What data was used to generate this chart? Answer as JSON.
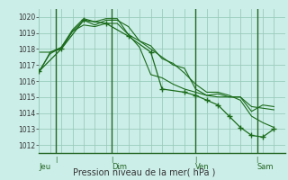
{
  "title": "Pression niveau de la mer( hPa )",
  "bg_color": "#cceee8",
  "grid_color": "#99ccbb",
  "line_color": "#1a6b1a",
  "marker_color": "#1a6b1a",
  "day_label_color": "#226622",
  "separator_color": "#226622",
  "ylim": [
    1011.5,
    1020.5
  ],
  "yticks": [
    1012,
    1013,
    1014,
    1015,
    1016,
    1017,
    1018,
    1019,
    1020
  ],
  "xlim": [
    0,
    22
  ],
  "day_positions": [
    1.5,
    6.5,
    14.0,
    19.5
  ],
  "day_labels": [
    "Jeu",
    "Dim",
    "Ven",
    "Sam"
  ],
  "series1": {
    "x": [
      0,
      1,
      2,
      3,
      4,
      5,
      6,
      7,
      8,
      9,
      10,
      11,
      12,
      13,
      14,
      15,
      16,
      17,
      18,
      19,
      20,
      21
    ],
    "y": [
      1016.6,
      1017.7,
      1018.1,
      1019.2,
      1019.9,
      1019.7,
      1019.9,
      1019.9,
      1018.9,
      1018.5,
      1018.2,
      1017.4,
      1017.1,
      1016.5,
      1015.8,
      1015.3,
      1015.3,
      1015.1,
      1014.8,
      1013.8,
      1013.4,
      1013.1
    ]
  },
  "series2": {
    "x": [
      0,
      1,
      2,
      3,
      4,
      5,
      6,
      7,
      8,
      9,
      10,
      11,
      12,
      13,
      14,
      15,
      16,
      17,
      18,
      19,
      20,
      21
    ],
    "y": [
      1017.8,
      1017.8,
      1018.1,
      1019.1,
      1019.5,
      1019.4,
      1019.6,
      1019.6,
      1018.9,
      1018.1,
      1016.4,
      1016.2,
      1015.8,
      1015.5,
      1015.3,
      1015.1,
      1015.0,
      1015.0,
      1015.0,
      1014.4,
      1014.3,
      1014.2
    ]
  },
  "series3": {
    "x": [
      0,
      1,
      2,
      3,
      4,
      5,
      6,
      7,
      8,
      9,
      10,
      11,
      12,
      13,
      14,
      15,
      16,
      17,
      18,
      19,
      20,
      21
    ],
    "y": [
      1016.5,
      1017.8,
      1018.0,
      1019.1,
      1019.8,
      1019.5,
      1019.8,
      1019.8,
      1019.4,
      1018.5,
      1018.0,
      1017.5,
      1017.0,
      1016.8,
      1015.5,
      1015.1,
      1015.2,
      1015.0,
      1015.0,
      1014.1,
      1014.5,
      1014.4
    ]
  },
  "series_marker": {
    "x": [
      0,
      2,
      4,
      6,
      8,
      10,
      11,
      13,
      14,
      15,
      16,
      17,
      18,
      19,
      20,
      21
    ],
    "y": [
      1016.6,
      1018.0,
      1019.8,
      1019.6,
      1018.8,
      1017.8,
      1015.5,
      1015.3,
      1015.1,
      1014.8,
      1014.5,
      1013.8,
      1013.1,
      1012.6,
      1012.5,
      1013.0
    ]
  }
}
